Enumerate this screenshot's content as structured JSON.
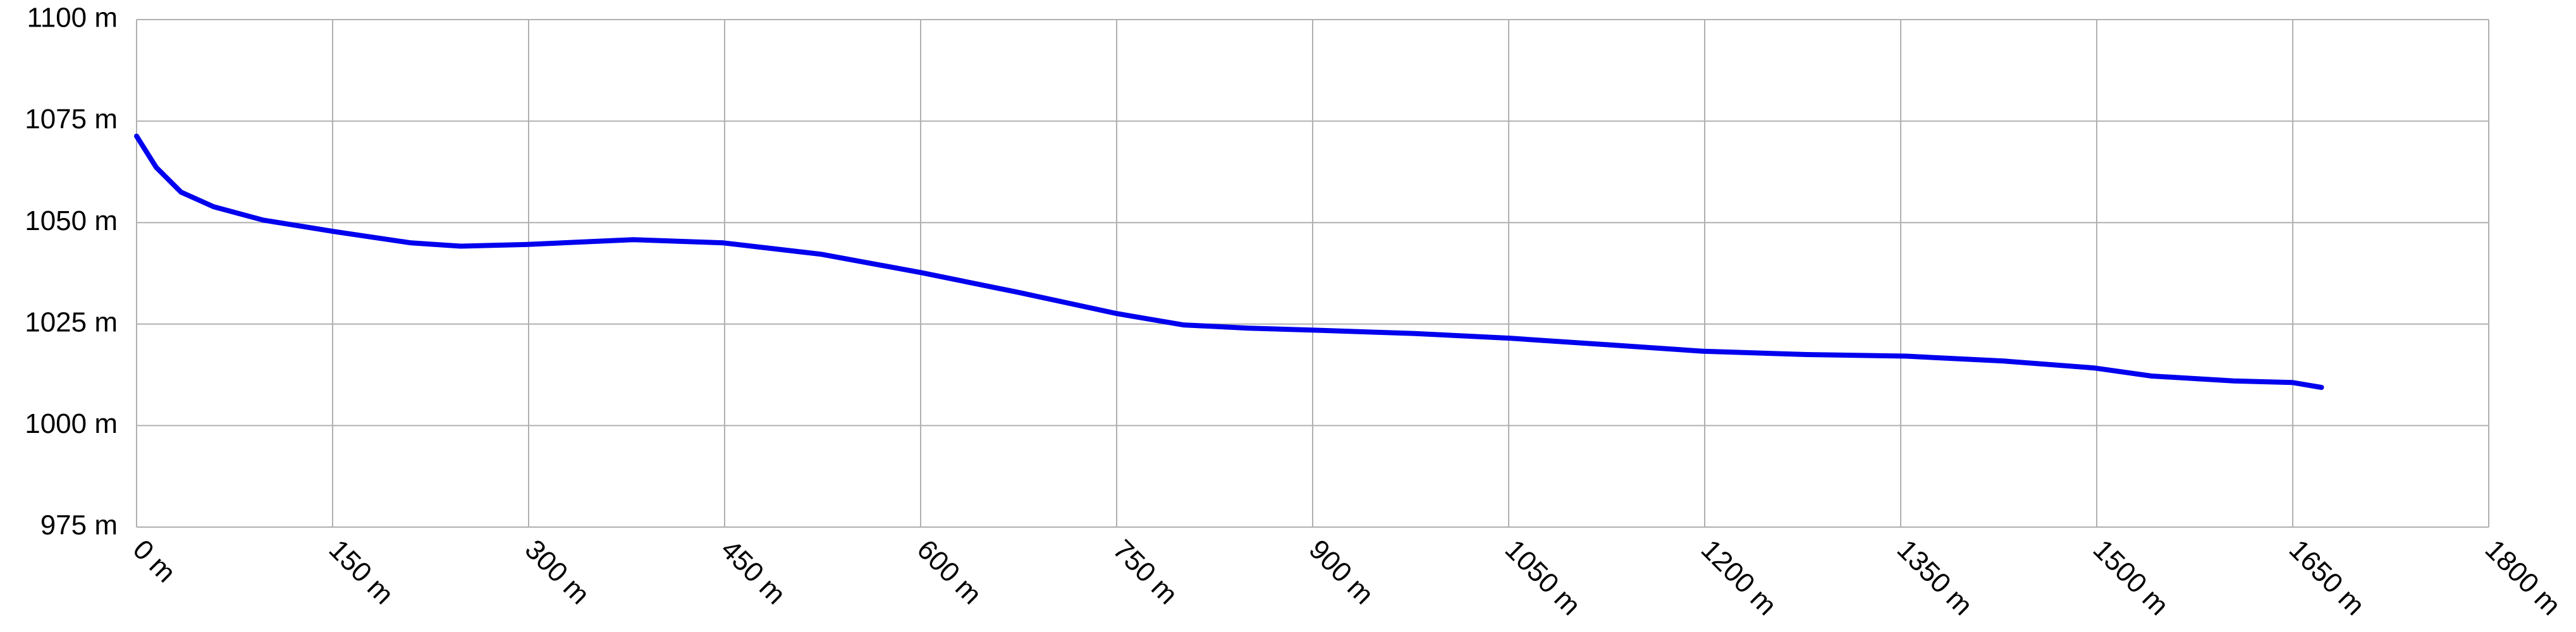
{
  "chart_data": {
    "type": "line",
    "x": [
      0,
      15,
      34,
      59,
      97,
      151,
      210,
      248,
      298,
      380,
      449,
      524,
      600,
      675,
      750,
      801,
      851,
      901,
      977,
      1052,
      1127,
      1199,
      1278,
      1354,
      1429,
      1498,
      1542,
      1605,
      1650,
      1672
    ],
    "values": [
      1071.3,
      1063.6,
      1057.5,
      1053.9,
      1050.6,
      1047.8,
      1045,
      1044.2,
      1044.6,
      1045.8,
      1045,
      1042.2,
      1037.7,
      1032.8,
      1027.6,
      1024.8,
      1024,
      1023.5,
      1022.7,
      1021.5,
      1019.9,
      1018.3,
      1017.5,
      1017.1,
      1015.9,
      1014.2,
      1012.2,
      1011,
      1010.6,
      1009.4
    ],
    "color": "#0000ee",
    "xlim": [
      0,
      1800
    ],
    "ylim": [
      975,
      1100
    ],
    "xticks": [
      {
        "value": 0,
        "label": "0 m"
      },
      {
        "value": 150,
        "label": "150 m"
      },
      {
        "value": 300,
        "label": "300 m"
      },
      {
        "value": 450,
        "label": "450 m"
      },
      {
        "value": 600,
        "label": "600 m"
      },
      {
        "value": 750,
        "label": "750 m"
      },
      {
        "value": 900,
        "label": "900 m"
      },
      {
        "value": 1050,
        "label": "1050 m"
      },
      {
        "value": 1200,
        "label": "1200 m"
      },
      {
        "value": 1350,
        "label": "1350 m"
      },
      {
        "value": 1500,
        "label": "1500 m"
      },
      {
        "value": 1650,
        "label": "1650 m"
      },
      {
        "value": 1800,
        "label": "1800 m"
      }
    ],
    "yticks": [
      {
        "value": 975,
        "label": "975 m"
      },
      {
        "value": 1000,
        "label": "1000 m"
      },
      {
        "value": 1025,
        "label": "1025 m"
      },
      {
        "value": 1050,
        "label": "1050 m"
      },
      {
        "value": 1075,
        "label": "1075 m"
      },
      {
        "value": 1100,
        "label": "1100 m"
      }
    ],
    "grid": true
  }
}
